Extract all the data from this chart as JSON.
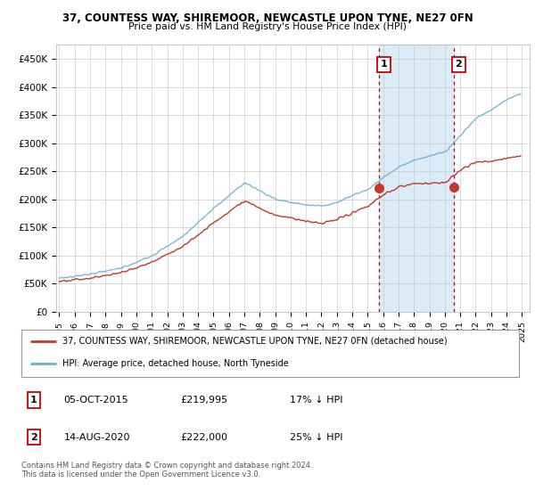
{
  "title1": "37, COUNTESS WAY, SHIREMOOR, NEWCASTLE UPON TYNE, NE27 0FN",
  "title2": "Price paid vs. HM Land Registry's House Price Index (HPI)",
  "ylabel_ticks": [
    "£0",
    "£50K",
    "£100K",
    "£150K",
    "£200K",
    "£250K",
    "£300K",
    "£350K",
    "£400K",
    "£450K"
  ],
  "ytick_vals": [
    0,
    50000,
    100000,
    150000,
    200000,
    250000,
    300000,
    350000,
    400000,
    450000
  ],
  "ylim": [
    0,
    475000
  ],
  "xlim_start": 1994.8,
  "xlim_end": 2025.5,
  "xtick_years": [
    1995,
    1996,
    1997,
    1998,
    1999,
    2000,
    2001,
    2002,
    2003,
    2004,
    2005,
    2006,
    2007,
    2008,
    2009,
    2010,
    2011,
    2012,
    2013,
    2014,
    2015,
    2016,
    2017,
    2018,
    2019,
    2020,
    2021,
    2022,
    2023,
    2024,
    2025
  ],
  "hpi_color": "#6baed6",
  "price_color": "#c0392b",
  "vline_color": "#cc0000",
  "shade_color": "#d6e8f7",
  "point1_x": 2015.75,
  "point1_y": 219995,
  "point2_x": 2020.6,
  "point2_y": 222000,
  "legend_label1": "37, COUNTESS WAY, SHIREMOOR, NEWCASTLE UPON TYNE, NE27 0FN (detached house)",
  "legend_label2": "HPI: Average price, detached house, North Tyneside",
  "table_row1": [
    "1",
    "05-OCT-2015",
    "£219,995",
    "17% ↓ HPI"
  ],
  "table_row2": [
    "2",
    "14-AUG-2020",
    "£222,000",
    "25% ↓ HPI"
  ],
  "footer": "Contains HM Land Registry data © Crown copyright and database right 2024.\nThis data is licensed under the Open Government Licence v3.0.",
  "bg_color": "#ffffff",
  "grid_color": "#cccccc"
}
